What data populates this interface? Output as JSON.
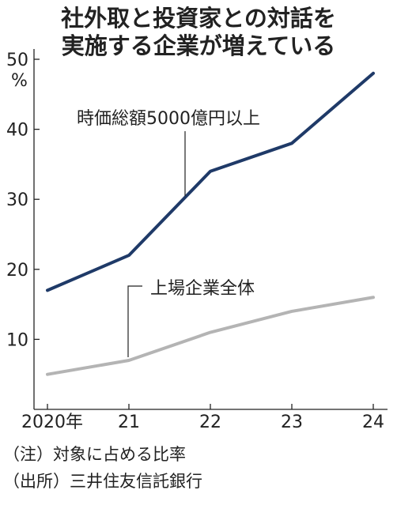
{
  "chart_data": {
    "type": "line",
    "title": [
      "社外取と投資家との対話を",
      "実施する企業が増えている"
    ],
    "y_unit": "%",
    "ylim": [
      0,
      50
    ],
    "y_ticks": [
      "50",
      "40",
      "30",
      "20",
      "10"
    ],
    "x_tick_labels": [
      "2020年",
      "21",
      "22",
      "23",
      "24"
    ],
    "series": [
      {
        "name": "時価総額5000億円以上",
        "values": [
          17,
          22,
          34,
          38,
          48
        ],
        "color": "#1f3a68"
      },
      {
        "name": "上場企業全体",
        "values": [
          5,
          7,
          11,
          14,
          16
        ],
        "color": "#b4b4b4"
      }
    ],
    "grid": false
  },
  "notes": [
    "（注）対象に占める比率",
    "（出所）三井住友信託銀行"
  ]
}
